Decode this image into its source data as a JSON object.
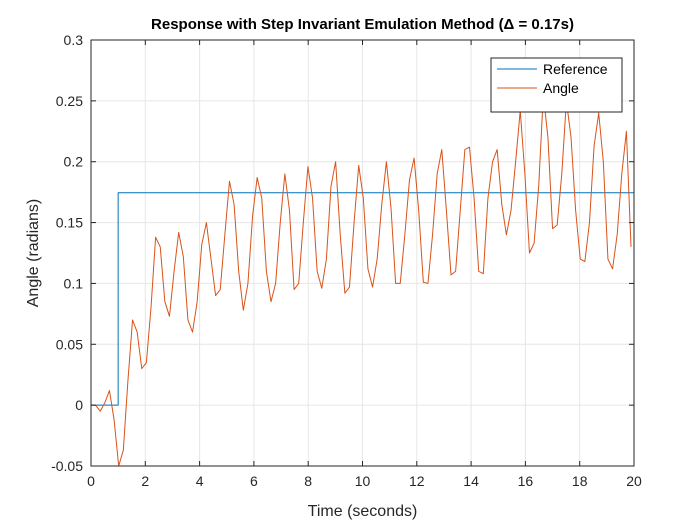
{
  "chart_data": {
    "type": "line",
    "title": "Response with Step Invariant Emulation Method (Δ = 0.17s)",
    "xlabel": "Time (seconds)",
    "ylabel": "Angle (radians)",
    "xlim": [
      0,
      20
    ],
    "ylim": [
      -0.05,
      0.3
    ],
    "xticks": [
      0,
      2,
      4,
      6,
      8,
      10,
      12,
      14,
      16,
      18,
      20
    ],
    "yticks": [
      -0.05,
      0,
      0.05,
      0.1,
      0.15,
      0.2,
      0.25,
      0.3
    ],
    "xtick_labels": [
      "0",
      "2",
      "4",
      "6",
      "8",
      "10",
      "12",
      "14",
      "16",
      "18",
      "20"
    ],
    "ytick_labels": [
      "-0.05",
      "0",
      "0.05",
      "0.1",
      "0.15",
      "0.2",
      "0.25",
      "0.3"
    ],
    "grid": true,
    "legend_position": "top-right",
    "series": [
      {
        "name": "Reference",
        "color": "#0072BD",
        "x": [
          0,
          1.0,
          1.0,
          20
        ],
        "y": [
          0,
          0,
          0.1745,
          0.1745
        ]
      },
      {
        "name": "Angle",
        "color": "#D95319",
        "x": [
          0,
          0.17,
          0.34,
          0.51,
          0.68,
          0.85,
          1.02,
          1.19,
          1.36,
          1.53,
          1.7,
          1.87,
          2.04,
          2.21,
          2.38,
          2.55,
          2.72,
          2.89,
          3.06,
          3.23,
          3.4,
          3.57,
          3.74,
          3.91,
          4.08,
          4.25,
          4.42,
          4.59,
          4.76,
          4.93,
          5.1,
          5.27,
          5.44,
          5.61,
          5.78,
          5.95,
          6.12,
          6.29,
          6.46,
          6.63,
          6.8,
          6.97,
          7.14,
          7.31,
          7.48,
          7.65,
          7.82,
          7.99,
          8.16,
          8.33,
          8.5,
          8.67,
          8.84,
          9.01,
          9.18,
          9.35,
          9.52,
          9.69,
          9.86,
          10.03,
          10.2,
          10.37,
          10.54,
          10.71,
          10.88,
          11.05,
          11.22,
          11.39,
          11.56,
          11.73,
          11.9,
          12.07,
          12.24,
          12.41,
          12.58,
          12.75,
          12.92,
          13.09,
          13.26,
          13.43,
          13.6,
          13.77,
          13.94,
          14.11,
          14.28,
          14.45,
          14.62,
          14.79,
          14.96,
          15.13,
          15.3,
          15.47,
          15.64,
          15.81,
          15.98,
          16.15,
          16.32,
          16.49,
          16.66,
          16.83,
          17.0,
          17.17,
          17.34,
          17.51,
          17.68,
          17.85,
          18.02,
          18.19,
          18.36,
          18.53,
          18.7,
          18.87,
          19.04,
          19.21,
          19.38,
          19.55,
          19.72,
          19.89
        ],
        "y": [
          0,
          0,
          -0.005,
          0.002,
          0.012,
          -0.012,
          -0.05,
          -0.037,
          0.02,
          0.07,
          0.06,
          0.03,
          0.035,
          0.08,
          0.138,
          0.13,
          0.085,
          0.073,
          0.11,
          0.142,
          0.122,
          0.07,
          0.06,
          0.085,
          0.132,
          0.15,
          0.12,
          0.09,
          0.095,
          0.14,
          0.184,
          0.165,
          0.11,
          0.078,
          0.1,
          0.155,
          0.187,
          0.17,
          0.11,
          0.085,
          0.1,
          0.15,
          0.19,
          0.16,
          0.095,
          0.1,
          0.15,
          0.196,
          0.17,
          0.11,
          0.096,
          0.12,
          0.18,
          0.2,
          0.14,
          0.092,
          0.097,
          0.15,
          0.197,
          0.17,
          0.112,
          0.097,
          0.12,
          0.165,
          0.2,
          0.162,
          0.1,
          0.1,
          0.14,
          0.185,
          0.203,
          0.16,
          0.101,
          0.1,
          0.14,
          0.19,
          0.21,
          0.16,
          0.107,
          0.11,
          0.16,
          0.21,
          0.212,
          0.17,
          0.11,
          0.108,
          0.17,
          0.2,
          0.21,
          0.165,
          0.14,
          0.16,
          0.2,
          0.242,
          0.19,
          0.125,
          0.133,
          0.18,
          0.255,
          0.22,
          0.145,
          0.148,
          0.19,
          0.25,
          0.22,
          0.16,
          0.12,
          0.118,
          0.15,
          0.213,
          0.24,
          0.2,
          0.12,
          0.112,
          0.14,
          0.19,
          0.225,
          0.13
        ]
      }
    ]
  }
}
